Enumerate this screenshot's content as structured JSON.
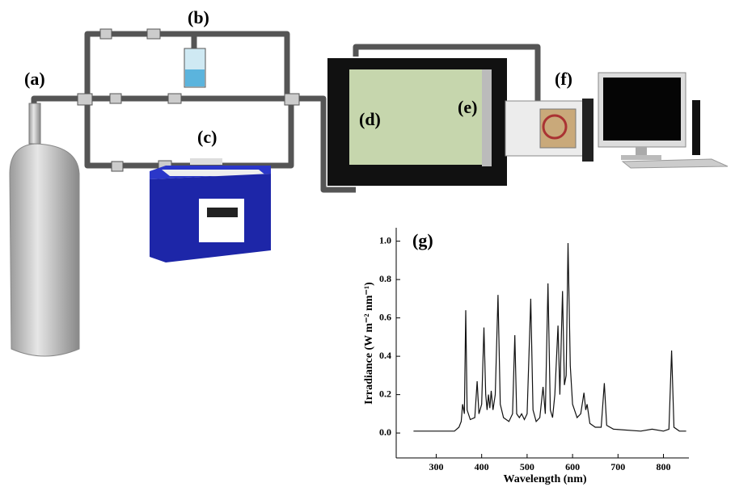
{
  "labels": {
    "a": "(a)",
    "b": "(b)",
    "c": "(c)",
    "d": "(d)",
    "e": "(e)",
    "f": "(f)"
  },
  "chart_data": {
    "type": "line",
    "title": "(g)",
    "x_label": "Wavelength (nm)",
    "y_label": "Irradiance (W m⁻² nm⁻¹)",
    "color": "#111111",
    "xlim": [
      212,
      856
    ],
    "ylim": [
      -0.13,
      1.07
    ],
    "xticks": [
      300,
      400,
      500,
      600,
      700,
      800
    ],
    "yticks": [
      {
        "value": 0,
        "label": "0.0"
      },
      {
        "value": 0.2,
        "label": "0.2"
      },
      {
        "value": 0.4,
        "label": "0.4"
      },
      {
        "value": 0.6,
        "label": "0.6"
      },
      {
        "value": 0.8,
        "label": "0.8"
      },
      {
        "value": 1,
        "label": "1.0"
      }
    ],
    "x": [
      250,
      300,
      340,
      350,
      355,
      358,
      362,
      365,
      368,
      375,
      385,
      390,
      394,
      400,
      405,
      409,
      412,
      415,
      418,
      421,
      425,
      430,
      436,
      441,
      448,
      460,
      468,
      473,
      477,
      483,
      488,
      494,
      500,
      508,
      513,
      520,
      528,
      535,
      540,
      546,
      551,
      556,
      561,
      568,
      572,
      578,
      582,
      586,
      590,
      595,
      600,
      610,
      618,
      625,
      629,
      632,
      638,
      650,
      663,
      670,
      675,
      690,
      750,
      775,
      800,
      812,
      818,
      823,
      835,
      850
    ],
    "series": [
      {
        "values": [
          0.01,
          0.01,
          0.01,
          0.03,
          0.06,
          0.15,
          0.1,
          0.64,
          0.12,
          0.07,
          0.08,
          0.27,
          0.1,
          0.15,
          0.55,
          0.2,
          0.12,
          0.2,
          0.13,
          0.22,
          0.12,
          0.2,
          0.72,
          0.15,
          0.08,
          0.06,
          0.1,
          0.51,
          0.1,
          0.08,
          0.1,
          0.07,
          0.1,
          0.7,
          0.12,
          0.06,
          0.08,
          0.24,
          0.1,
          0.78,
          0.12,
          0.08,
          0.2,
          0.56,
          0.2,
          0.74,
          0.25,
          0.3,
          0.99,
          0.35,
          0.15,
          0.08,
          0.1,
          0.21,
          0.12,
          0.15,
          0.05,
          0.03,
          0.03,
          0.26,
          0.04,
          0.02,
          0.01,
          0.02,
          0.01,
          0.02,
          0.43,
          0.03,
          0.01,
          0.01
        ]
      }
    ]
  }
}
